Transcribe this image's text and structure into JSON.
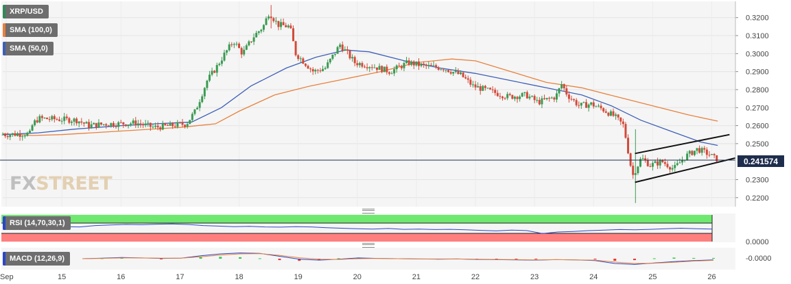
{
  "legend": {
    "symbol": "XRP/USD",
    "sma100": "SMA (100,0)",
    "sma50": "SMA (50,0)",
    "rsi": "RSI (14,70,30,1)",
    "macd": "MACD (12,26,9)"
  },
  "logo": {
    "fx": "FX",
    "street": "STREET"
  },
  "colors": {
    "up": "#3a9a52",
    "down": "#d24a3a",
    "sma100": "#e8813c",
    "sma50": "#3d5fb8",
    "rsi_line": "#2b45c8",
    "rsi_overbought": "#6ee86e",
    "rsi_oversold": "#ff7f7f",
    "price_tag": "#1f2d4d"
  },
  "chart_data": {
    "type": "candlestick",
    "title": "XRP/USD",
    "y_ticks": [
      "0.3200",
      "0.3100",
      "0.3000",
      "0.2900",
      "0.2800",
      "0.2700",
      "0.2600",
      "0.2500",
      "0.2300",
      "0.2200"
    ],
    "y_range": [
      0.2165,
      0.3275
    ],
    "x_ticks": [
      "Sep",
      "15",
      "16",
      "17",
      "18",
      "19",
      "20",
      "21",
      "22",
      "23",
      "24",
      "25",
      "26"
    ],
    "x_range": [
      14.0,
      26.4
    ],
    "last_price": 0.2416,
    "last_price_label": "0.241574",
    "price_path": [
      [
        14.0,
        0.255
      ],
      [
        14.5,
        0.2555
      ],
      [
        14.55,
        0.261
      ],
      [
        14.65,
        0.264
      ],
      [
        15.0,
        0.2635
      ],
      [
        15.3,
        0.263
      ],
      [
        15.5,
        0.26
      ],
      [
        15.8,
        0.261
      ],
      [
        16.0,
        0.261
      ],
      [
        16.3,
        0.2615
      ],
      [
        16.6,
        0.259
      ],
      [
        16.9,
        0.26
      ],
      [
        17.15,
        0.261
      ],
      [
        17.3,
        0.268
      ],
      [
        17.5,
        0.285
      ],
      [
        17.65,
        0.292
      ],
      [
        17.8,
        0.3
      ],
      [
        17.95,
        0.307
      ],
      [
        18.1,
        0.3
      ],
      [
        18.3,
        0.31
      ],
      [
        18.45,
        0.315
      ],
      [
        18.55,
        0.323
      ],
      [
        18.7,
        0.316
      ],
      [
        18.9,
        0.315
      ],
      [
        19.0,
        0.3
      ],
      [
        19.15,
        0.295
      ],
      [
        19.3,
        0.29
      ],
      [
        19.5,
        0.292
      ],
      [
        19.75,
        0.305
      ],
      [
        20.0,
        0.295
      ],
      [
        20.3,
        0.293
      ],
      [
        20.6,
        0.29
      ],
      [
        20.9,
        0.295
      ],
      [
        21.2,
        0.293
      ],
      [
        21.5,
        0.292
      ],
      [
        21.8,
        0.288
      ],
      [
        22.0,
        0.282
      ],
      [
        22.3,
        0.279
      ],
      [
        22.6,
        0.276
      ],
      [
        22.9,
        0.277
      ],
      [
        23.1,
        0.273
      ],
      [
        23.4,
        0.276
      ],
      [
        23.5,
        0.283
      ],
      [
        23.6,
        0.277
      ],
      [
        23.8,
        0.271
      ],
      [
        24.0,
        0.272
      ],
      [
        24.2,
        0.269
      ],
      [
        24.4,
        0.265
      ],
      [
        24.55,
        0.26
      ],
      [
        24.7,
        0.232
      ],
      [
        24.85,
        0.242
      ],
      [
        25.0,
        0.238
      ],
      [
        25.2,
        0.24
      ],
      [
        25.4,
        0.236
      ],
      [
        25.6,
        0.243
      ],
      [
        25.8,
        0.247
      ],
      [
        26.0,
        0.244
      ],
      [
        26.1,
        0.2416
      ]
    ],
    "spikes": [
      {
        "x": 18.55,
        "high": 0.327,
        "low": 0.314
      },
      {
        "x": 24.7,
        "high": 0.258,
        "low": 0.217
      }
    ],
    "sma100": [
      [
        14.0,
        0.2555
      ],
      [
        14.5,
        0.2545
      ],
      [
        15.0,
        0.255
      ],
      [
        16.0,
        0.257
      ],
      [
        17.0,
        0.259
      ],
      [
        17.6,
        0.261
      ],
      [
        18.0,
        0.268
      ],
      [
        18.6,
        0.277
      ],
      [
        19.2,
        0.282
      ],
      [
        19.8,
        0.286
      ],
      [
        20.4,
        0.29
      ],
      [
        21.0,
        0.295
      ],
      [
        21.6,
        0.297
      ],
      [
        22.0,
        0.296
      ],
      [
        22.6,
        0.29
      ],
      [
        23.2,
        0.284
      ],
      [
        23.8,
        0.281
      ],
      [
        24.4,
        0.276
      ],
      [
        25.0,
        0.271
      ],
      [
        25.6,
        0.266
      ],
      [
        26.1,
        0.2625
      ]
    ],
    "sma50": [
      [
        14.0,
        0.255
      ],
      [
        14.6,
        0.256
      ],
      [
        15.2,
        0.258
      ],
      [
        16.0,
        0.26
      ],
      [
        16.6,
        0.261
      ],
      [
        17.2,
        0.262
      ],
      [
        17.7,
        0.27
      ],
      [
        18.2,
        0.282
      ],
      [
        18.8,
        0.292
      ],
      [
        19.3,
        0.298
      ],
      [
        19.8,
        0.302
      ],
      [
        20.2,
        0.301
      ],
      [
        20.8,
        0.296
      ],
      [
        21.4,
        0.292
      ],
      [
        22.0,
        0.289
      ],
      [
        22.6,
        0.285
      ],
      [
        23.2,
        0.281
      ],
      [
        23.8,
        0.277
      ],
      [
        24.3,
        0.271
      ],
      [
        24.8,
        0.263
      ],
      [
        25.3,
        0.257
      ],
      [
        25.8,
        0.251
      ],
      [
        26.1,
        0.249
      ]
    ],
    "channel_upper": [
      [
        24.7,
        0.2445
      ],
      [
        26.3,
        0.255
      ]
    ],
    "channel_lower": [
      [
        24.7,
        0.2285
      ],
      [
        26.4,
        0.242
      ]
    ],
    "rsi": {
      "overbought": 70,
      "oversold": 30,
      "values": [
        55,
        56,
        58,
        57,
        56,
        55,
        60,
        62,
        64,
        63,
        65,
        66,
        64,
        60,
        58,
        56,
        57,
        55,
        54,
        56,
        55,
        52,
        50,
        48,
        47,
        49,
        46,
        47,
        45,
        46,
        44,
        42,
        40,
        43,
        41,
        30,
        36,
        38,
        41,
        43,
        45,
        44,
        46,
        48,
        50,
        48,
        47
      ]
    },
    "macd": {
      "tick_label": "-0.0000",
      "macd_line": [
        0,
        0.2,
        0.5,
        0.3,
        0.1,
        0.2,
        1.2,
        2.0,
        2.4,
        2.2,
        1.0,
        -0.2,
        -0.6,
        -0.2,
        0.3,
        0.1,
        0.0,
        -0.1,
        -0.2,
        -0.1,
        -0.3,
        -0.4,
        -0.5,
        -0.6,
        -0.4,
        -0.5,
        -0.8,
        -2.0,
        -2.4,
        -1.8,
        -1.2,
        -0.8,
        -0.5
      ],
      "signal_line": [
        0,
        0.1,
        0.3,
        0.3,
        0.2,
        0.2,
        0.8,
        1.5,
        2.0,
        2.1,
        1.4,
        0.4,
        -0.2,
        -0.3,
        0.0,
        0.1,
        0.0,
        -0.1,
        -0.1,
        -0.1,
        -0.2,
        -0.3,
        -0.4,
        -0.5,
        -0.4,
        -0.5,
        -0.6,
        -1.4,
        -2.0,
        -1.9,
        -1.5,
        -1.0,
        -0.7
      ]
    },
    "rsi_tick_label": "0.0000"
  }
}
